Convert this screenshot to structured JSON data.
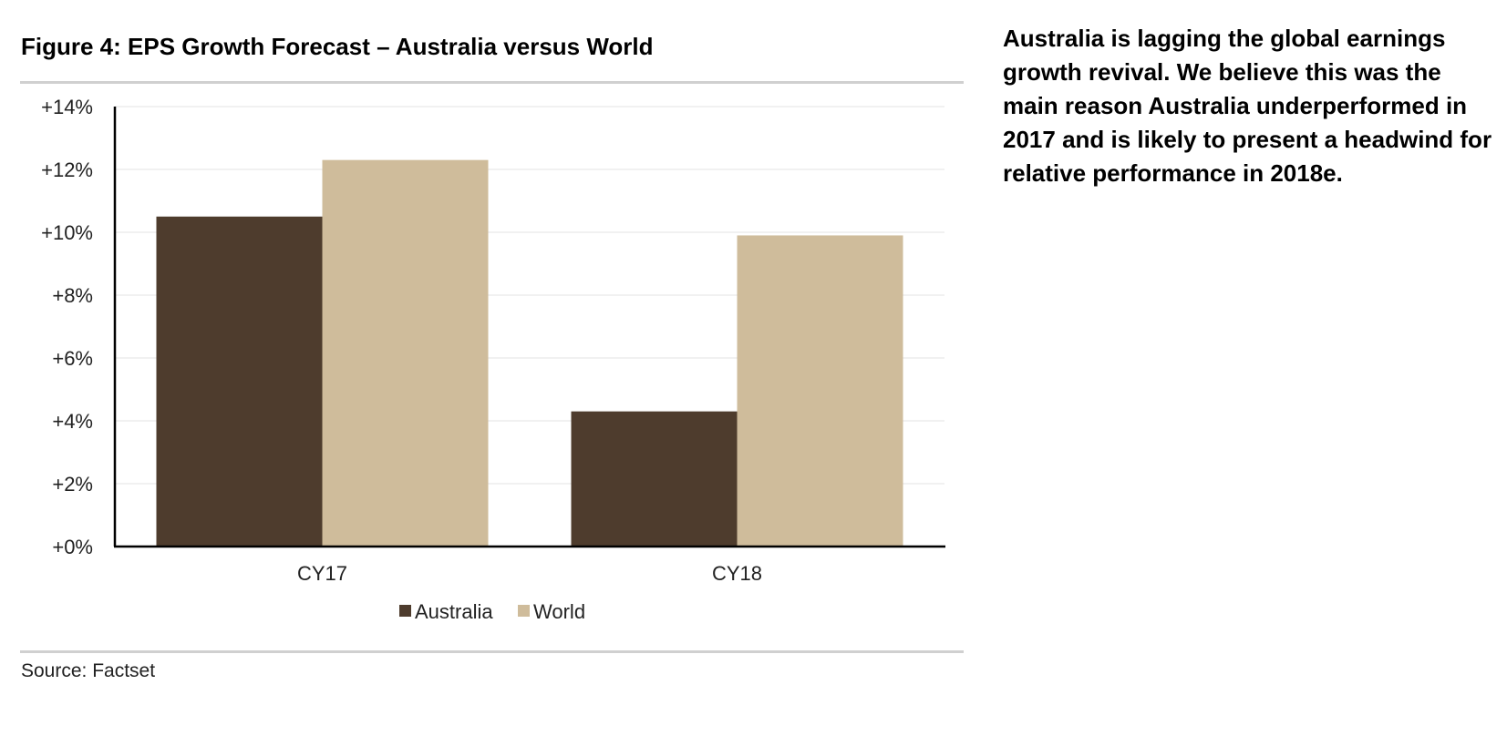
{
  "figure": {
    "title": "Figure 4: EPS Growth Forecast – Australia versus World",
    "source": "Source: Factset"
  },
  "commentary": {
    "text": "Australia is lagging the global earnings growth revival. We believe this was the main reason Australia underperformed in 2017 and is likely to present a headwind for relative performance in 2018e."
  },
  "chart_data": {
    "type": "bar",
    "title": "",
    "xlabel": "",
    "ylabel": "",
    "categories": [
      "CY17",
      "CY18"
    ],
    "series": [
      {
        "name": "Australia",
        "values": [
          10.5,
          4.3
        ],
        "color": "#4e3c2d"
      },
      {
        "name": "World",
        "values": [
          12.3,
          9.9
        ],
        "color": "#cfbc9b"
      }
    ],
    "ylim": [
      0,
      14
    ],
    "yticks": [
      0,
      2,
      4,
      6,
      8,
      10,
      12,
      14
    ],
    "ytick_labels": [
      "+0%",
      "+2%",
      "+4%",
      "+6%",
      "+8%",
      "+10%",
      "+12%",
      "+14%"
    ],
    "grid": true,
    "legend_position": "bottom-center"
  }
}
